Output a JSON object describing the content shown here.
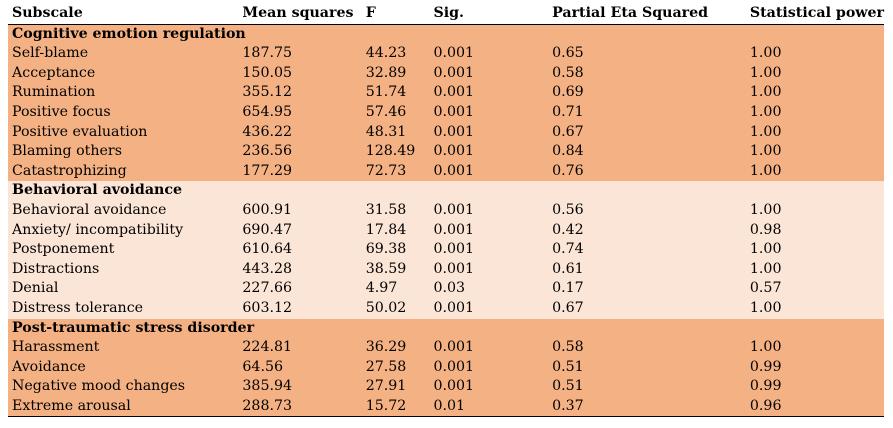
{
  "colors": {
    "dark_band": "#f4b183",
    "light_band": "#fbe5d6"
  },
  "headers": [
    "Subscale",
    "Mean squares",
    "F",
    "Sig.",
    "Partial Eta Squared",
    "Statistical power"
  ],
  "sections": [
    {
      "title": "Cognitive emotion regulation",
      "shade": "dark",
      "rows": [
        [
          "Self-blame",
          "187.75",
          "44.23",
          "0.001",
          "0.65",
          "1.00"
        ],
        [
          "Acceptance",
          "150.05",
          "32.89",
          "0.001",
          "0.58",
          "1.00"
        ],
        [
          "Rumination",
          "355.12",
          "51.74",
          "0.001",
          "0.69",
          "1.00"
        ],
        [
          "Positive focus",
          "654.95",
          "57.46",
          "0.001",
          "0.71",
          "1.00"
        ],
        [
          "Positive evaluation",
          "436.22",
          "48.31",
          "0.001",
          "0.67",
          "1.00"
        ],
        [
          "Blaming others",
          "236.56",
          "128.49",
          "0.001",
          "0.84",
          "1.00"
        ],
        [
          "Catastrophizing",
          "177.29",
          "72.73",
          "0.001",
          "0.76",
          "1.00"
        ]
      ]
    },
    {
      "title": "Behavioral avoidance",
      "shade": "light",
      "rows": [
        [
          "Behavioral avoidance",
          "600.91",
          "31.58",
          "0.001",
          "0.56",
          "1.00"
        ],
        [
          "Anxiety/ incompatibility",
          "690.47",
          "17.84",
          "0.001",
          "0.42",
          "0.98"
        ],
        [
          "Postponement",
          "610.64",
          "69.38",
          "0.001",
          "0.74",
          "1.00"
        ],
        [
          "Distractions",
          "443.28",
          "38.59",
          "0.001",
          "0.61",
          "1.00"
        ],
        [
          "Denial",
          "227.66",
          "4.97",
          "0.03",
          "0.17",
          "0.57"
        ],
        [
          "Distress tolerance",
          "603.12",
          "50.02",
          "0.001",
          "0.67",
          "1.00"
        ]
      ]
    },
    {
      "title": "Post-traumatic stress disorder",
      "shade": "dark",
      "rows": [
        [
          "Harassment",
          "224.81",
          "36.29",
          "0.001",
          "0.58",
          "1.00"
        ],
        [
          "Avoidance",
          "64.56",
          "27.58",
          "0.001",
          "0.51",
          "0.99"
        ],
        [
          "Negative mood changes",
          "385.94",
          "27.91",
          "0.001",
          "0.51",
          "0.99"
        ],
        [
          "Extreme arousal",
          "288.73",
          "15.72",
          "0.01",
          "0.37",
          "0.96"
        ]
      ]
    }
  ]
}
